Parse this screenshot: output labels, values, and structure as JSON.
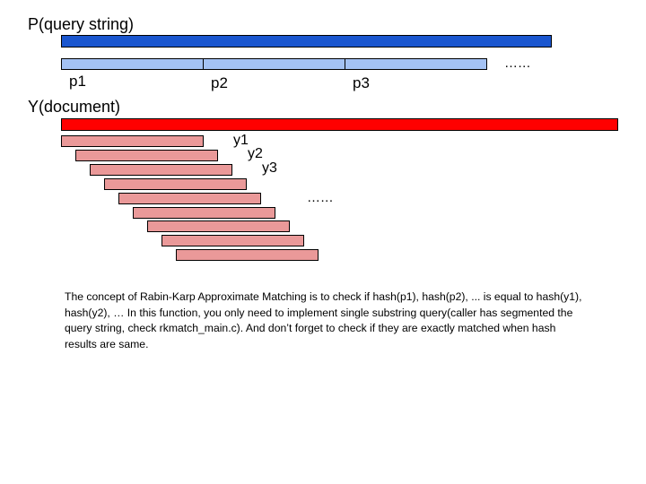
{
  "query": {
    "title": "P(query string)",
    "segments": [
      "p1",
      "p2",
      "p3"
    ],
    "ellipsis": "…...",
    "colors": {
      "main": "#1a56cf",
      "segment": "#a4c2f4"
    }
  },
  "document": {
    "title": "Y(document)",
    "window_labels": [
      "y1",
      "y2",
      "y3"
    ],
    "window_count": 9,
    "ellipsis": "…...",
    "colors": {
      "main": "#ff0000",
      "window": "#ea9999"
    }
  },
  "description": "The concept of Rabin-Karp Approximate Matching is to check if hash(p1), hash(p2), ... is equal to hash(y1), hash(y2), … In this function, you only need to implement single substring query(caller has segmented the query string, check rkmatch_main.c). And don’t forget to check if they are exactly matched when hash results are same."
}
